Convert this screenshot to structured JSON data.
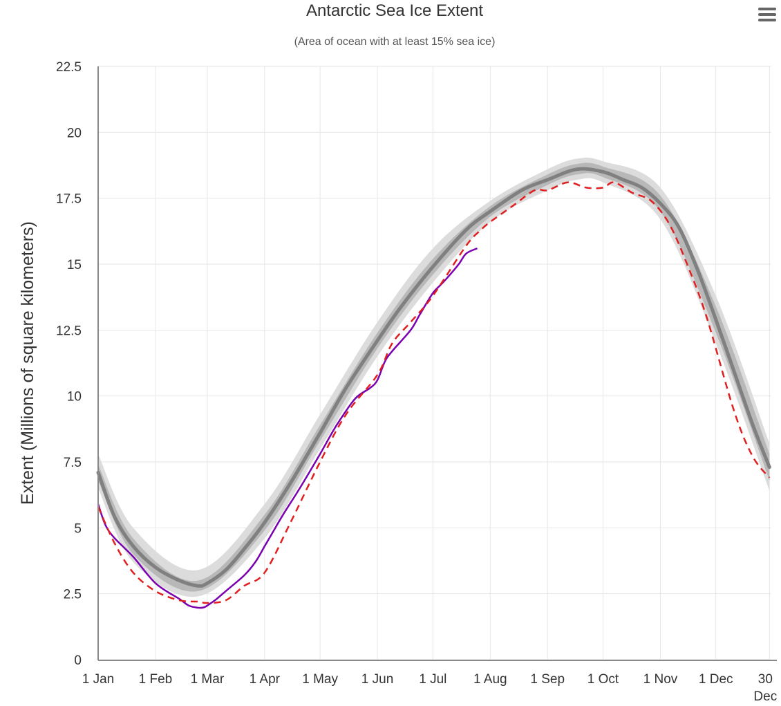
{
  "menu_icon": "hamburger-menu-icon",
  "colors": {
    "median": "#808080",
    "iqr": "#b8b8b8",
    "idr": "#dcdcdc",
    "current_year": "#7a00b0",
    "reference_year": "#e02020",
    "grid": "#e6e6e6",
    "axis": "#888888"
  },
  "chart_data": {
    "type": "line",
    "title": "Antarctic Sea Ice Extent",
    "subtitle": "(Area of ocean with at least 15% sea ice)",
    "ylabel": "Extent (Millions of square kilometers)",
    "xlabel": "",
    "ylim": [
      0,
      22.5
    ],
    "xlim": [
      1,
      365
    ],
    "grid": true,
    "yticks": [
      0,
      2.5,
      5,
      7.5,
      10,
      12.5,
      15,
      17.5,
      20,
      22.5
    ],
    "ytick_labels": [
      "0",
      "2.5",
      "5",
      "7.5",
      "10",
      "12.5",
      "15",
      "17.5",
      "20",
      "22.5"
    ],
    "xticks": [
      {
        "day": 1,
        "label": "1 Jan"
      },
      {
        "day": 32,
        "label": "1 Feb"
      },
      {
        "day": 60,
        "label": "1 Mar"
      },
      {
        "day": 91,
        "label": "1 Apr"
      },
      {
        "day": 121,
        "label": "1 May"
      },
      {
        "day": 152,
        "label": "1 Jun"
      },
      {
        "day": 182,
        "label": "1 Jul"
      },
      {
        "day": 213,
        "label": "1 Aug"
      },
      {
        "day": 244,
        "label": "1 Sep"
      },
      {
        "day": 274,
        "label": "1 Oct"
      },
      {
        "day": 305,
        "label": "1 Nov"
      },
      {
        "day": 335,
        "label": "1 Dec"
      },
      {
        "day": 364,
        "label": "30 Dec"
      }
    ],
    "median": {
      "x": [
        1,
        10,
        20,
        32,
        45,
        55,
        60,
        70,
        80,
        91,
        105,
        121,
        135,
        152,
        165,
        182,
        200,
        213,
        230,
        244,
        260,
        274,
        285,
        295,
        305,
        315,
        325,
        335,
        345,
        355,
        364
      ],
      "y": [
        7.1,
        5.4,
        4.3,
        3.5,
        3.0,
        2.8,
        2.9,
        3.4,
        4.2,
        5.2,
        6.7,
        8.6,
        10.3,
        12.1,
        13.4,
        14.9,
        16.3,
        17.0,
        17.8,
        18.2,
        18.6,
        18.5,
        18.2,
        17.9,
        17.3,
        16.4,
        14.8,
        12.9,
        10.9,
        8.9,
        7.3
      ]
    },
    "interquartile_range": {
      "x": [
        1,
        20,
        55,
        91,
        121,
        152,
        182,
        213,
        244,
        260,
        274,
        305,
        335,
        364
      ],
      "low": [
        6.8,
        4.0,
        2.6,
        4.9,
        8.3,
        11.8,
        14.6,
        16.8,
        18.0,
        18.4,
        18.3,
        17.0,
        12.4,
        6.8
      ],
      "high": [
        7.4,
        4.6,
        3.0,
        5.5,
        8.9,
        12.4,
        15.2,
        17.2,
        18.4,
        18.8,
        18.7,
        17.6,
        13.4,
        7.8
      ]
    },
    "interdecile_range": {
      "x": [
        1,
        20,
        55,
        91,
        121,
        152,
        182,
        213,
        244,
        260,
        274,
        305,
        335,
        364
      ],
      "low": [
        6.5,
        3.7,
        2.4,
        4.6,
        8.0,
        11.5,
        14.3,
        16.6,
        17.8,
        18.2,
        18.1,
        16.7,
        12.0,
        6.4
      ],
      "high": [
        7.8,
        5.0,
        3.4,
        5.9,
        9.3,
        12.8,
        15.6,
        17.4,
        18.6,
        19.0,
        18.9,
        17.9,
        13.8,
        8.2
      ]
    },
    "series": [
      {
        "style": "solid",
        "x": [
          1,
          5,
          10,
          20,
          32,
          45,
          50,
          55,
          58,
          60,
          65,
          70,
          80,
          86,
          91,
          96,
          101,
          110,
          121,
          130,
          140,
          148,
          152,
          156,
          160,
          170,
          175,
          182,
          186,
          190,
          196,
          200,
          206
        ],
        "y": [
          5.9,
          5.1,
          4.6,
          3.9,
          2.9,
          2.3,
          2.05,
          1.97,
          1.98,
          2.05,
          2.3,
          2.6,
          3.2,
          3.7,
          4.3,
          4.9,
          5.5,
          6.5,
          7.8,
          8.9,
          9.9,
          10.3,
          10.6,
          11.3,
          11.7,
          12.5,
          13.1,
          13.9,
          14.2,
          14.5,
          15.0,
          15.4,
          15.6
        ]
      },
      {
        "style": "dashed",
        "x": [
          1,
          10,
          20,
          32,
          45,
          55,
          60,
          70,
          80,
          91,
          105,
          121,
          135,
          152,
          160,
          170,
          182,
          200,
          208,
          213,
          225,
          237,
          244,
          255,
          265,
          274,
          280,
          290,
          300,
          310,
          320,
          330,
          345,
          355,
          364
        ],
        "y": [
          5.8,
          4.4,
          3.3,
          2.6,
          2.25,
          2.2,
          2.15,
          2.25,
          2.8,
          3.3,
          5.2,
          7.5,
          9.3,
          10.8,
          12.0,
          12.8,
          13.8,
          15.7,
          16.3,
          16.6,
          17.2,
          17.8,
          17.8,
          18.1,
          17.9,
          17.9,
          18.1,
          17.7,
          17.4,
          16.5,
          14.9,
          13.0,
          9.4,
          7.7,
          6.9
        ]
      }
    ]
  }
}
